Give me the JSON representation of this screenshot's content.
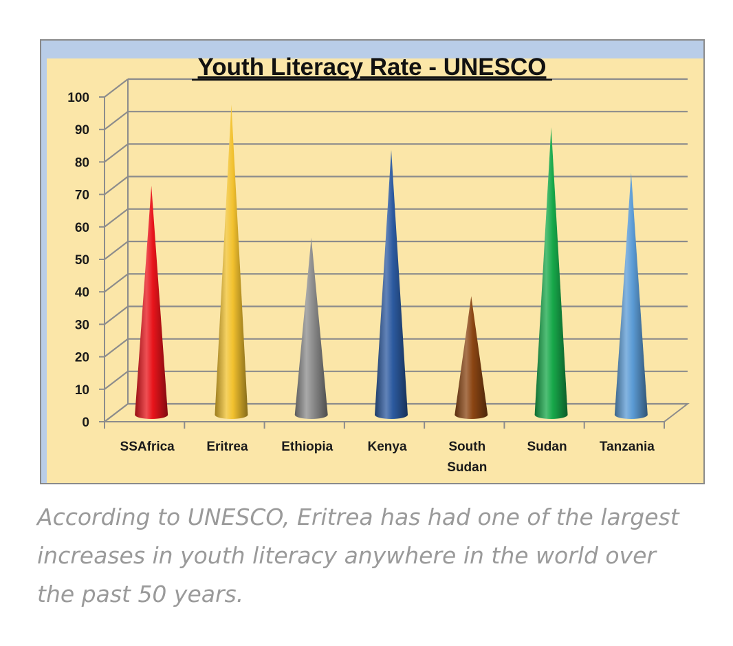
{
  "chart_data": {
    "type": "bar",
    "style": "3d-cone",
    "title": "Youth Literacy Rate - UNESCO",
    "xlabel": "",
    "ylabel": "",
    "ylim": [
      0,
      100
    ],
    "yticks": [
      0,
      10,
      20,
      30,
      40,
      50,
      60,
      70,
      80,
      90,
      100
    ],
    "grid": true,
    "legend": "none",
    "categories": [
      "SSAfrica",
      "Eritrea",
      "Ethiopia",
      "Kenya",
      "South Sudan",
      "Sudan",
      "Tanzania"
    ],
    "values": [
      71,
      96,
      55,
      82,
      37,
      89,
      75
    ],
    "colors": [
      "#e8141b",
      "#f2c12e",
      "#8c8c8c",
      "#2c5aa0",
      "#8b4513",
      "#17a84a",
      "#5b9bd5"
    ],
    "background": "#fbe6a8",
    "title_bar_color": "#b9cde8"
  },
  "caption": "According to UNESCO, Eritrea has had one of the largest increases in youth literacy anywhere in the world over the past 50 years."
}
